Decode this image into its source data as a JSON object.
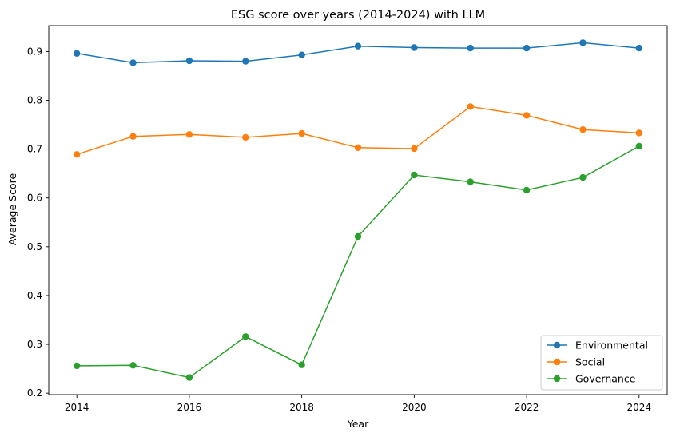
{
  "chart_data": {
    "type": "line",
    "title": "ESG score over years (2014-2024) with LLM",
    "xlabel": "Year",
    "ylabel": "Average Score",
    "x": [
      2014,
      2015,
      2016,
      2017,
      2018,
      2019,
      2020,
      2021,
      2022,
      2023,
      2024
    ],
    "xticks": [
      "2014",
      "2016",
      "2018",
      "2020",
      "2022",
      "2024"
    ],
    "yticks": [
      "0.2",
      "0.3",
      "0.4",
      "0.5",
      "0.6",
      "0.7",
      "0.8",
      "0.9"
    ],
    "xlim": [
      2013.5,
      2024.5
    ],
    "ylim": [
      0.197,
      0.953
    ],
    "grid": false,
    "legend_position": "lower right",
    "series": [
      {
        "name": "Environmental",
        "color": "#1f77b4",
        "values": [
          0.896,
          0.877,
          0.881,
          0.88,
          0.893,
          0.911,
          0.908,
          0.907,
          0.907,
          0.918,
          0.907
        ]
      },
      {
        "name": "Social",
        "color": "#ff7f0e",
        "values": [
          0.689,
          0.726,
          0.73,
          0.724,
          0.732,
          0.703,
          0.701,
          0.787,
          0.769,
          0.74,
          0.733
        ]
      },
      {
        "name": "Governance",
        "color": "#2ca02c",
        "values": [
          0.256,
          0.257,
          0.232,
          0.316,
          0.258,
          0.521,
          0.647,
          0.633,
          0.616,
          0.642,
          0.706
        ]
      }
    ]
  }
}
